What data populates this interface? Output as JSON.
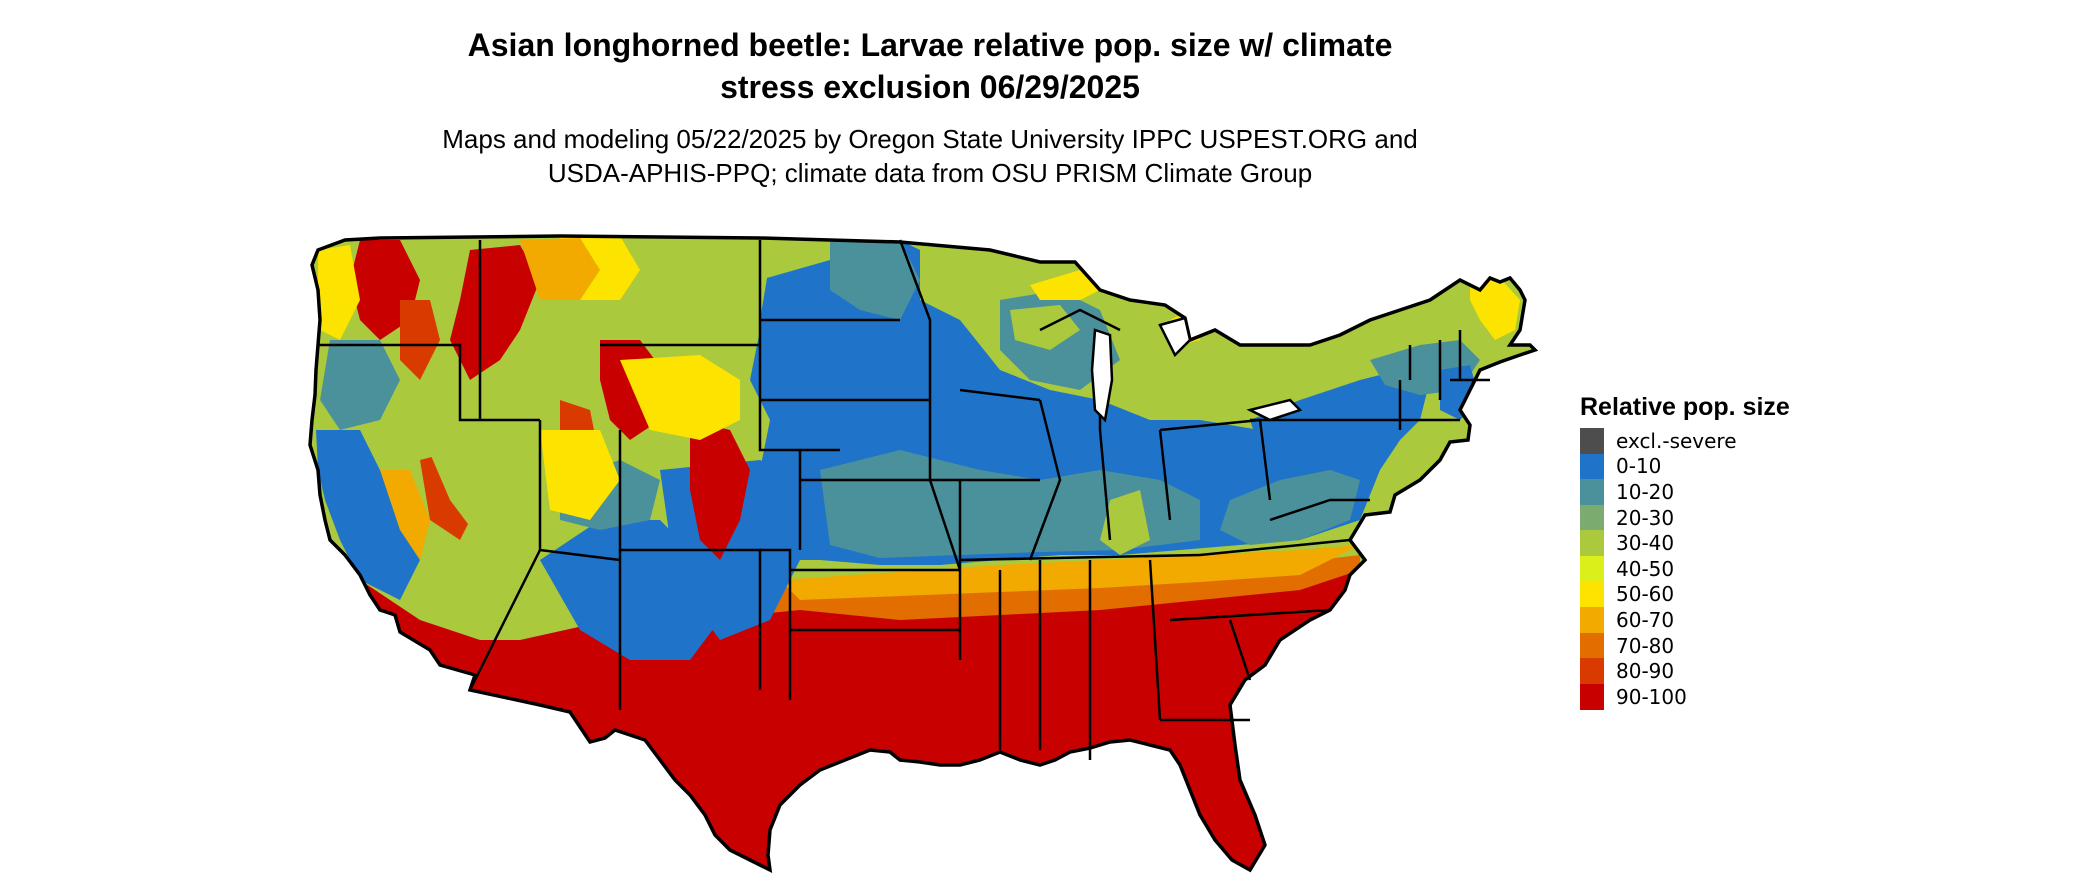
{
  "title": {
    "line1": "Asian longhorned beetle: Larvae relative pop. size w/ climate",
    "line2": "stress exclusion 06/29/2025"
  },
  "subtitle": {
    "line1": "Maps and modeling 05/22/2025 by Oregon State University IPPC USPEST.ORG and",
    "line2": "USDA-APHIS-PPQ; climate data from OSU PRISM Climate Group"
  },
  "legend": {
    "title": "Relative pop. size",
    "items": [
      {
        "label": "excl.-severe",
        "color": "#4d4d4d"
      },
      {
        "label": "0-10",
        "color": "#1f74c9"
      },
      {
        "label": "10-20",
        "color": "#4b919c"
      },
      {
        "label": "20-30",
        "color": "#7bab6e"
      },
      {
        "label": "30-40",
        "color": "#abc93c"
      },
      {
        "label": "40-50",
        "color": "#dbf01b"
      },
      {
        "label": "50-60",
        "color": "#fde300"
      },
      {
        "label": "60-70",
        "color": "#f2a900"
      },
      {
        "label": "70-80",
        "color": "#e36e00"
      },
      {
        "label": "80-90",
        "color": "#d93a00"
      },
      {
        "label": "90-100",
        "color": "#c90000"
      }
    ]
  },
  "map": {
    "region": "Contiguous United States",
    "boundary_color": "#000000"
  }
}
